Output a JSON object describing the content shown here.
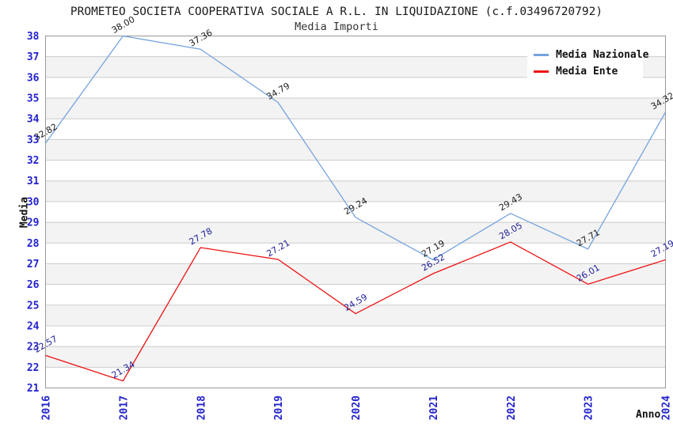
{
  "title": "PROMETEO SOCIETA COOPERATIVA SOCIALE A R.L. IN LIQUIDAZIONE (c.f.03496720792)",
  "subtitle": "Media Importi",
  "legend": {
    "items": [
      {
        "label": "Media Nazionale",
        "color": "#74a3dd"
      },
      {
        "label": "Media Ente",
        "color": "#ee1111"
      }
    ]
  },
  "axes": {
    "x_title": "Anno",
    "y_title": "Media",
    "x_ticks": [
      "2016",
      "2017",
      "2018",
      "2019",
      "2020",
      "2021",
      "2022",
      "2023",
      "2024"
    ],
    "y_min": 21,
    "y_max": 38,
    "y_step": 1
  },
  "colors": {
    "tick_label": "#2222cc",
    "grid_line": "#cccccc",
    "plot_border": "#999999",
    "band_fill": "#f3f3f3",
    "title_text": "#1a1a1a",
    "national_series": "#74a3dd",
    "entity_series": "#ee1111",
    "national_point_label": "#1a1a1a",
    "entity_point_label": "#202099"
  },
  "chart_data": {
    "type": "line",
    "title": "PROMETEO SOCIETA COOPERATIVA SOCIALE A R.L. IN LIQUIDAZIONE (c.f.03496720792)",
    "subtitle": "Media Importi",
    "xlabel": "Anno",
    "ylabel": "Media",
    "x": [
      2016,
      2017,
      2018,
      2019,
      2020,
      2021,
      2022,
      2023,
      2024
    ],
    "series": [
      {
        "name": "Media Nazionale",
        "color": "#74a3dd",
        "label_color": "#1a1a1a",
        "values": [
          32.82,
          38.0,
          37.36,
          34.79,
          29.24,
          27.19,
          29.43,
          27.71,
          34.32
        ]
      },
      {
        "name": "Media Ente",
        "color": "#ee1111",
        "label_color": "#202099",
        "values": [
          22.57,
          21.34,
          27.78,
          27.21,
          24.59,
          26.52,
          28.05,
          26.01,
          27.19
        ]
      }
    ],
    "ylim": [
      21,
      38
    ],
    "y_tick_step": 1,
    "grid": true,
    "band_shading": true,
    "legend_position": "top-right",
    "point_label_format": "two-decimals"
  }
}
